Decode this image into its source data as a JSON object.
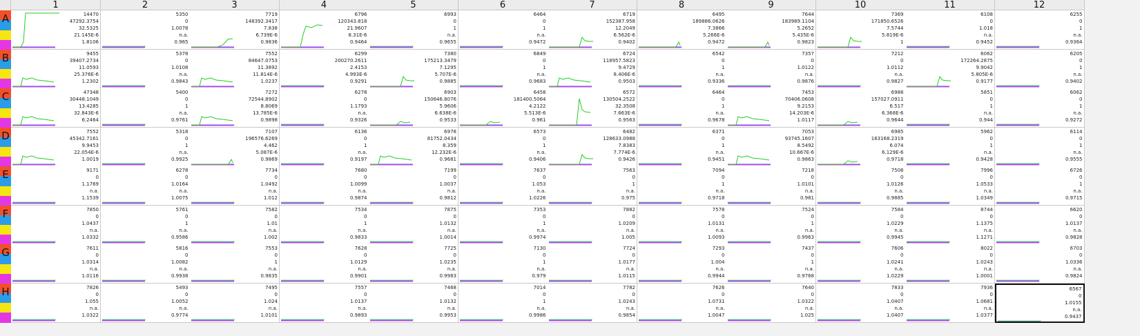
{
  "columns": [
    "1",
    "2",
    "3",
    "4",
    "5",
    "6",
    "7",
    "8",
    "9",
    "10",
    "11",
    "12"
  ],
  "rows": [
    "A",
    "B",
    "C",
    "D",
    "E",
    "F",
    "G",
    "H"
  ],
  "row_strip_colors": [
    "#f2502a",
    "#2c9ce8",
    "#f5e611",
    "#e437e4"
  ],
  "curve_color": "#22cc22",
  "baseline_colors": [
    "#5b5bf0",
    "#e040e0"
  ],
  "selected_well": "H12",
  "wells": [
    [
      {
        "v": [
          "14470",
          "47292.3754",
          "32.5325",
          "21.145E-6",
          "1.8106"
        ],
        "curve": "tall"
      },
      {
        "v": [
          "5350",
          "0",
          "1.0078",
          "n.a.",
          "0.965"
        ],
        "curve": "flat"
      },
      {
        "v": [
          "7719",
          "148392.3417",
          "7.838",
          "6.739E-6",
          "0.9836"
        ],
        "curve": "lowrise"
      },
      {
        "v": [
          "6796",
          "120343.818",
          "21.9607",
          "8.31E-6",
          "0.9464"
        ],
        "curve": "rise"
      },
      {
        "v": [
          "6993",
          "0",
          "1",
          "n.a.",
          "0.9655"
        ],
        "curve": "flat"
      },
      {
        "v": [
          "6464",
          "0",
          "1",
          "n.a.",
          "0.9472"
        ],
        "curve": "flat"
      },
      {
        "v": [
          "6719",
          "152387.958",
          "12.2049",
          "6.562E-6",
          "0.9402"
        ],
        "curve": "spike"
      },
      {
        "v": [
          "6495",
          "189886.0626",
          "7.3866",
          "5.266E-6",
          "0.9472"
        ],
        "curve": "tick"
      },
      {
        "v": [
          "7644",
          "183989.1104",
          "5.2652",
          "5.435E-6",
          "0.9823"
        ],
        "curve": "tick"
      },
      {
        "v": [
          "7369",
          "171850.6526",
          "7.5744",
          "5.819E-6",
          "1"
        ],
        "curve": "spike"
      },
      {
        "v": [
          "6108",
          "0",
          "1.018",
          "n.a.",
          "0.9452"
        ],
        "curve": "flat"
      },
      {
        "v": [
          "6255",
          "0",
          "1",
          "n.a.",
          "0.9364"
        ],
        "curve": "flat"
      }
    ],
    [
      {
        "v": [
          "9455",
          "39407.2734",
          "11.0593",
          "25.376E-6",
          "1.2302"
        ],
        "curve": "hump"
      },
      {
        "v": [
          "5378",
          "0",
          "1.0108",
          "n.a.",
          "0.9843"
        ],
        "curve": "flat"
      },
      {
        "v": [
          "7552",
          "84647.0753",
          "11.3892",
          "11.814E-6",
          "1.0237"
        ],
        "curve": "hump"
      },
      {
        "v": [
          "6299",
          "200270.2611",
          "2.4153",
          "4.993E-6",
          "0.9291"
        ],
        "curve": "flat"
      },
      {
        "v": [
          "7380",
          "175213.3479",
          "7.1295",
          "5.707E-6",
          "0.9885"
        ],
        "curve": "spike"
      },
      {
        "v": [
          "6849",
          "0",
          "1",
          "n.a.",
          "0.9683"
        ],
        "curve": "flat"
      },
      {
        "v": [
          "6724",
          "118957.5823",
          "9.4729",
          "8.406E-6",
          "0.9503"
        ],
        "curve": "hump"
      },
      {
        "v": [
          "6542",
          "0",
          "1",
          "n.a.",
          "0.9336"
        ],
        "curve": "flat"
      },
      {
        "v": [
          "7357",
          "0",
          "1.0122",
          "n.a.",
          "0.9876"
        ],
        "curve": "flat"
      },
      {
        "v": [
          "7212",
          "0",
          "1.0112",
          "n.a.",
          "0.9827"
        ],
        "curve": "flat"
      },
      {
        "v": [
          "6062",
          "172264.2875",
          "9.9042",
          "5.805E-6",
          "0.9177"
        ],
        "curve": "spike"
      },
      {
        "v": [
          "6205",
          "0",
          "1",
          "n.a.",
          "0.9402"
        ],
        "curve": "flat"
      }
    ],
    [
      {
        "v": [
          "47348",
          "30448.1049",
          "13.4285",
          "32.843E-6",
          "6.2464"
        ],
        "curve": "hump"
      },
      {
        "v": [
          "5400",
          "0",
          "1",
          "n.a.",
          "0.9761"
        ],
        "curve": "flat"
      },
      {
        "v": [
          "7272",
          "72544.8902",
          "8.8069",
          "13.785E-6",
          "0.9898"
        ],
        "curve": "hump"
      },
      {
        "v": [
          "6278",
          "0",
          "1.1793",
          "n.a.",
          "0.9326"
        ],
        "curve": "flat"
      },
      {
        "v": [
          "6903",
          "150646.8076",
          "5.9606",
          "6.638E-6",
          "0.9533"
        ],
        "curve": "small"
      },
      {
        "v": [
          "6458",
          "181400.5064",
          "4.2122",
          "5.513E-6",
          "0.961"
        ],
        "curve": "small"
      },
      {
        "v": [
          "6572",
          "130504.2522",
          "32.3508",
          "7.663E-6",
          "0.9563"
        ],
        "curve": "bigspike"
      },
      {
        "v": [
          "6464",
          "0",
          "1",
          "n.a.",
          "0.9678"
        ],
        "curve": "flat"
      },
      {
        "v": [
          "7453",
          "70406.0608",
          "9.2153",
          "14.203E-6",
          "1.0117"
        ],
        "curve": "hump"
      },
      {
        "v": [
          "6988",
          "157027.0911",
          "6.517",
          "6.368E-6",
          "0.9644"
        ],
        "curve": "small"
      },
      {
        "v": [
          "5851",
          "0",
          "1",
          "n.a.",
          "0.944"
        ],
        "curve": "flat"
      },
      {
        "v": [
          "6062",
          "0",
          "1",
          "n.a.",
          "0.9272"
        ],
        "curve": "flat"
      }
    ],
    [
      {
        "v": [
          "7552",
          "45342.7161",
          "9.9453",
          "22.054E-6",
          "1.0019"
        ],
        "curve": "hump"
      },
      {
        "v": [
          "5318",
          "0",
          "1",
          "n.a.",
          "0.9925"
        ],
        "curve": "flat"
      },
      {
        "v": [
          "7107",
          "196576.6269",
          "4.462",
          "5.087E-6",
          "0.9869"
        ],
        "curve": "tick"
      },
      {
        "v": [
          "6136",
          "0",
          "1",
          "n.a.",
          "0.9197"
        ],
        "curve": "flat"
      },
      {
        "v": [
          "6978",
          "81752.0434",
          "8.359",
          "12.232E-6",
          "0.9681"
        ],
        "curve": "hump"
      },
      {
        "v": [
          "6573",
          "0",
          "1",
          "n.a.",
          "0.9406"
        ],
        "curve": "flat"
      },
      {
        "v": [
          "6482",
          "128633.0988",
          "7.8383",
          "7.774E-6",
          "0.9426"
        ],
        "curve": "spike"
      },
      {
        "v": [
          "6371",
          "0",
          "1",
          "n.a.",
          "0.9451"
        ],
        "curve": "flat"
      },
      {
        "v": [
          "7053",
          "93745.1607",
          "8.5492",
          "10.667E-6",
          "0.9863"
        ],
        "curve": "hump"
      },
      {
        "v": [
          "6985",
          "163168.2319",
          "6.074",
          "6.129E-6",
          "0.9718"
        ],
        "curve": "small"
      },
      {
        "v": [
          "5962",
          "0",
          "1",
          "n.a.",
          "0.9428"
        ],
        "curve": "flat"
      },
      {
        "v": [
          "6114",
          "0",
          "1",
          "n.a.",
          "0.9555"
        ],
        "curve": "flat"
      }
    ],
    [
      {
        "v": [
          "9171",
          "0",
          "1.1769",
          "n.a.",
          "1.1539"
        ],
        "curve": "flat"
      },
      {
        "v": [
          "6278",
          "0",
          "1.0164",
          "n.a.",
          "1.0075"
        ],
        "curve": "flat"
      },
      {
        "v": [
          "7734",
          "0",
          "1.0492",
          "n.a.",
          "1.012"
        ],
        "curve": "flat"
      },
      {
        "v": [
          "7680",
          "0",
          "1.0099",
          "n.a.",
          "0.9874"
        ],
        "curve": "flat"
      },
      {
        "v": [
          "7199",
          "0",
          "1.0037",
          "n.a.",
          "0.9812"
        ],
        "curve": "flat"
      },
      {
        "v": [
          "7637",
          "0",
          "1.053",
          "n.a.",
          "1.0226"
        ],
        "curve": "flat"
      },
      {
        "v": [
          "7563",
          "0",
          "1",
          "n.a.",
          "0.975"
        ],
        "curve": "flat"
      },
      {
        "v": [
          "7094",
          "0",
          "1",
          "n.a.",
          "0.9718"
        ],
        "curve": "flat"
      },
      {
        "v": [
          "7218",
          "0",
          "1.0101",
          "n.a.",
          "0.981"
        ],
        "curve": "flat"
      },
      {
        "v": [
          "7508",
          "0",
          "1.0126",
          "n.a.",
          "0.9885"
        ],
        "curve": "flat"
      },
      {
        "v": [
          "7996",
          "0",
          "1.0533",
          "n.a.",
          "1.0349"
        ],
        "curve": "flat"
      },
      {
        "v": [
          "6726",
          "0",
          "1",
          "n.a.",
          "0.9715"
        ],
        "curve": "flat"
      }
    ],
    [
      {
        "v": [
          "7850",
          "0",
          "1.0437",
          "n.a.",
          "1.0332"
        ],
        "curve": "flat"
      },
      {
        "v": [
          "5761",
          "0",
          "1",
          "n.a.",
          "0.9586"
        ],
        "curve": "flat"
      },
      {
        "v": [
          "7582",
          "0",
          "1.01",
          "n.a.",
          "1.002"
        ],
        "curve": "flat"
      },
      {
        "v": [
          "7534",
          "0",
          "1",
          "n.a.",
          "0.9833"
        ],
        "curve": "flat"
      },
      {
        "v": [
          "7875",
          "0",
          "1.0132",
          "n.a.",
          "1.0014"
        ],
        "curve": "flat"
      },
      {
        "v": [
          "7353",
          "0",
          "1",
          "n.a.",
          "0.9974"
        ],
        "curve": "flat"
      },
      {
        "v": [
          "7882",
          "0",
          "1.0209",
          "n.a.",
          "1.005"
        ],
        "curve": "flat"
      },
      {
        "v": [
          "7578",
          "0",
          "1.0131",
          "n.a.",
          "1.0093"
        ],
        "curve": "flat"
      },
      {
        "v": [
          "7524",
          "0",
          "1",
          "n.a.",
          "0.9963"
        ],
        "curve": "flat"
      },
      {
        "v": [
          "7584",
          "0",
          "1.0229",
          "n.a.",
          "0.9945"
        ],
        "curve": "flat"
      },
      {
        "v": [
          "8744",
          "0",
          "1.1375",
          "n.a.",
          "1.1271"
        ],
        "curve": "flat"
      },
      {
        "v": [
          "6620",
          "0",
          "1.0137",
          "n.a.",
          "0.9828"
        ],
        "curve": "flat"
      }
    ],
    [
      {
        "v": [
          "7611",
          "0",
          "1.0314",
          "n.a.",
          "1.0116"
        ],
        "curve": "flat"
      },
      {
        "v": [
          "5816",
          "0",
          "1.0082",
          "n.a.",
          "0.9938"
        ],
        "curve": "flat"
      },
      {
        "v": [
          "7553",
          "0",
          "1",
          "n.a.",
          "0.9835"
        ],
        "curve": "flat"
      },
      {
        "v": [
          "7628",
          "0",
          "1.0129",
          "n.a.",
          "0.9901"
        ],
        "curve": "flat"
      },
      {
        "v": [
          "7725",
          "0",
          "1.0235",
          "n.a.",
          "0.9983"
        ],
        "curve": "flat"
      },
      {
        "v": [
          "7130",
          "0",
          "1",
          "n.a.",
          "0.979"
        ],
        "curve": "flat"
      },
      {
        "v": [
          "7724",
          "0",
          "1.0177",
          "n.a.",
          "1.0115"
        ],
        "curve": "flat"
      },
      {
        "v": [
          "7293",
          "0",
          "1.004",
          "n.a.",
          "0.9944"
        ],
        "curve": "flat"
      },
      {
        "v": [
          "7437",
          "0",
          "1",
          "n.a.",
          "0.9768"
        ],
        "curve": "flat"
      },
      {
        "v": [
          "7606",
          "0",
          "1.0241",
          "n.a.",
          "1.0229"
        ],
        "curve": "flat"
      },
      {
        "v": [
          "8022",
          "0",
          "1.0243",
          "n.a.",
          "1.0001"
        ],
        "curve": "flat"
      },
      {
        "v": [
          "6703",
          "0",
          "1.0336",
          "n.a.",
          "0.9824"
        ],
        "curve": "flat"
      }
    ],
    [
      {
        "v": [
          "7826",
          "0",
          "1.055",
          "n.a.",
          "1.0322"
        ],
        "curve": "flat"
      },
      {
        "v": [
          "5493",
          "0",
          "1.0052",
          "n.a.",
          "0.9774"
        ],
        "curve": "flat"
      },
      {
        "v": [
          "7495",
          "0",
          "1.024",
          "n.a.",
          "1.0101"
        ],
        "curve": "flat"
      },
      {
        "v": [
          "7557",
          "0",
          "1.0137",
          "n.a.",
          "0.9893"
        ],
        "curve": "flat"
      },
      {
        "v": [
          "7468",
          "0",
          "1.0132",
          "n.a.",
          "0.9953"
        ],
        "curve": "flat"
      },
      {
        "v": [
          "7014",
          "0",
          "1",
          "n.a.",
          "0.9986"
        ],
        "curve": "flat"
      },
      {
        "v": [
          "7782",
          "0",
          "1.0243",
          "n.a.",
          "0.9854"
        ],
        "curve": "flat"
      },
      {
        "v": [
          "7626",
          "0",
          "1.0731",
          "n.a.",
          "1.0047"
        ],
        "curve": "flat"
      },
      {
        "v": [
          "7640",
          "0",
          "1.0322",
          "n.a.",
          "1.025"
        ],
        "curve": "flat"
      },
      {
        "v": [
          "7833",
          "0",
          "1.0407",
          "n.a.",
          "1.0407"
        ],
        "curve": "flat"
      },
      {
        "v": [
          "7936",
          "0",
          "1.0681",
          "n.a.",
          "1.0377"
        ],
        "curve": "flat"
      },
      {
        "v": [
          "6567",
          "0",
          "1.0155",
          "n.a.",
          "0.9437"
        ],
        "curve": "flat"
      }
    ]
  ]
}
